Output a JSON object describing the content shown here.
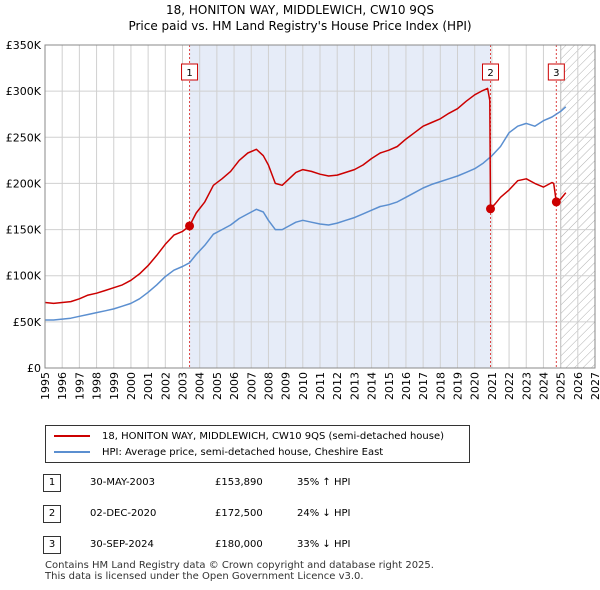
{
  "title_line1": "18, HONITON WAY, MIDDLEWICH, CW10 9QS",
  "title_line2": "Price paid vs. HM Land Registry's House Price Index (HPI)",
  "chart_data": {
    "type": "line",
    "title": "18, HONITON WAY, MIDDLEWICH, CW10 9QS",
    "subtitle": "Price paid vs. HM Land Registry's House Price Index (HPI)",
    "xlabel": "",
    "ylabel": "",
    "xlim": [
      1995,
      2027
    ],
    "ylim": [
      0,
      350000
    ],
    "y_ticks": [
      0,
      50000,
      100000,
      150000,
      200000,
      250000,
      300000,
      350000
    ],
    "y_tick_labels": [
      "£0",
      "£50K",
      "£100K",
      "£150K",
      "£200K",
      "£250K",
      "£300K",
      "£350K"
    ],
    "x_ticks": [
      1995,
      1996,
      1997,
      1998,
      1999,
      2000,
      2001,
      2002,
      2003,
      2004,
      2005,
      2006,
      2007,
      2008,
      2009,
      2010,
      2011,
      2012,
      2013,
      2014,
      2015,
      2016,
      2017,
      2018,
      2019,
      2020,
      2021,
      2022,
      2023,
      2024,
      2025,
      2026,
      2027
    ],
    "x_tick_labels": [
      "1995",
      "1996",
      "1997",
      "1998",
      "1999",
      "2000",
      "2001",
      "2002",
      "2003",
      "2004",
      "2005",
      "2006",
      "2007",
      "2008",
      "2009",
      "2010",
      "2011",
      "2012",
      "2013",
      "2014",
      "2015",
      "2016",
      "2017",
      "2018",
      "2019",
      "2020",
      "2021",
      "2022",
      "2023",
      "2024",
      "2025",
      "2026",
      "2027"
    ],
    "grid": true,
    "shaded_period": [
      2003.41,
      2020.92
    ],
    "hatched_from": 2025.0,
    "series": [
      {
        "name": "18, HONITON WAY, MIDDLEWICH, CW10 9QS (semi-detached house)",
        "color": "#cc0000",
        "x": [
          1995.0,
          1995.5,
          1996.0,
          1996.5,
          1997.0,
          1997.5,
          1998.0,
          1998.5,
          1999.0,
          1999.5,
          2000.0,
          2000.5,
          2001.0,
          2001.5,
          2002.0,
          2002.5,
          2003.0,
          2003.41,
          2003.8,
          2004.3,
          2004.8,
          2005.3,
          2005.8,
          2006.3,
          2006.8,
          2007.3,
          2007.7,
          2008.0,
          2008.4,
          2008.8,
          2009.2,
          2009.6,
          2010.0,
          2010.5,
          2011.0,
          2011.5,
          2012.0,
          2012.5,
          2013.0,
          2013.5,
          2014.0,
          2014.5,
          2015.0,
          2015.5,
          2016.0,
          2016.5,
          2017.0,
          2017.5,
          2018.0,
          2018.5,
          2019.0,
          2019.5,
          2020.0,
          2020.4,
          2020.75,
          2020.88,
          2020.92,
          2021.2,
          2021.5,
          2022.0,
          2022.5,
          2023.0,
          2023.5,
          2024.0,
          2024.5,
          2024.6,
          2024.75,
          2025.0,
          2025.3
        ],
        "values": [
          71000,
          70000,
          71000,
          72000,
          75000,
          79000,
          81000,
          84000,
          87000,
          90000,
          95000,
          102000,
          111000,
          122000,
          134000,
          144000,
          148000,
          153890,
          168000,
          180000,
          198000,
          205000,
          213000,
          225000,
          233000,
          237000,
          230000,
          220000,
          200000,
          198000,
          205000,
          212000,
          215000,
          213000,
          210000,
          208000,
          209000,
          212000,
          215000,
          220000,
          227000,
          233000,
          236000,
          240000,
          248000,
          255000,
          262000,
          266000,
          270000,
          276000,
          281000,
          289000,
          296000,
          300000,
          303000,
          290000,
          172500,
          178000,
          185000,
          193000,
          203000,
          205000,
          200000,
          196000,
          201000,
          200000,
          180000,
          183000,
          190000
        ]
      },
      {
        "name": "HPI: Average price, semi-detached house, Cheshire East",
        "color": "#5b8fd0",
        "x": [
          1995.0,
          1995.5,
          1996.0,
          1996.5,
          1997.0,
          1997.5,
          1998.0,
          1998.5,
          1999.0,
          1999.5,
          2000.0,
          2000.5,
          2001.0,
          2001.5,
          2002.0,
          2002.5,
          2003.0,
          2003.41,
          2003.8,
          2004.3,
          2004.8,
          2005.3,
          2005.8,
          2006.3,
          2006.8,
          2007.3,
          2007.7,
          2008.0,
          2008.4,
          2008.8,
          2009.2,
          2009.6,
          2010.0,
          2010.5,
          2011.0,
          2011.5,
          2012.0,
          2012.5,
          2013.0,
          2013.5,
          2014.0,
          2014.5,
          2015.0,
          2015.5,
          2016.0,
          2016.5,
          2017.0,
          2017.5,
          2018.0,
          2018.5,
          2019.0,
          2019.5,
          2020.0,
          2020.5,
          2021.0,
          2021.5,
          2022.0,
          2022.5,
          2023.0,
          2023.5,
          2024.0,
          2024.5,
          2025.0,
          2025.3
        ],
        "values": [
          52000,
          52000,
          53000,
          54000,
          56000,
          58000,
          60000,
          62000,
          64000,
          67000,
          70000,
          75000,
          82000,
          90000,
          99000,
          106000,
          110000,
          114000,
          123000,
          133000,
          145000,
          150000,
          155000,
          162000,
          167000,
          172000,
          169000,
          160000,
          150000,
          150000,
          154000,
          158000,
          160000,
          158000,
          156000,
          155000,
          157000,
          160000,
          163000,
          167000,
          171000,
          175000,
          177000,
          180000,
          185000,
          190000,
          195000,
          199000,
          202000,
          205000,
          208000,
          212000,
          216000,
          222000,
          230000,
          240000,
          255000,
          262000,
          265000,
          262000,
          268000,
          272000,
          278000,
          283000
        ]
      }
    ],
    "sales": [
      {
        "label": "1",
        "date": "30-MAY-2003",
        "x": 2003.41,
        "price": 153890,
        "hpi_change": "35% ↑ HPI"
      },
      {
        "label": "2",
        "date": "02-DEC-2020",
        "x": 2020.92,
        "price": 172500,
        "hpi_change": "24% ↓ HPI"
      },
      {
        "label": "3",
        "date": "30-SEP-2024",
        "x": 2024.75,
        "price": 180000,
        "hpi_change": "33% ↓ HPI"
      }
    ]
  },
  "legend": {
    "property_label": "18, HONITON WAY, MIDDLEWICH, CW10 9QS (semi-detached house)",
    "hpi_label": "HPI: Average price, semi-detached house, Cheshire East",
    "property_color": "#cc0000",
    "hpi_color": "#5b8fd0"
  },
  "sales_table": [
    {
      "num": "1",
      "date": "30-MAY-2003",
      "price": "£153,890",
      "hpi": "35% ↑ HPI"
    },
    {
      "num": "2",
      "date": "02-DEC-2020",
      "price": "£172,500",
      "hpi": "24% ↓ HPI"
    },
    {
      "num": "3",
      "date": "30-SEP-2024",
      "price": "£180,000",
      "hpi": "33% ↓ HPI"
    }
  ],
  "footer": {
    "line1": "Contains HM Land Registry data © Crown copyright and database right 2025.",
    "line2": "This data is licensed under the Open Government Licence v3.0."
  }
}
